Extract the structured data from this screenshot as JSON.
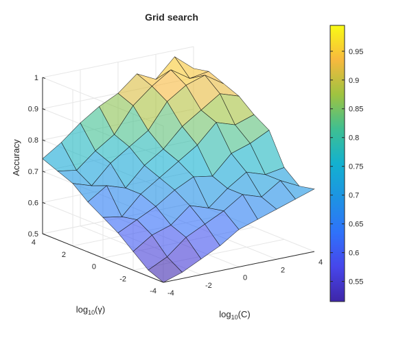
{
  "chart_data": {
    "type": "surface3d",
    "title": "Grid search",
    "xlabel": "log10(C)",
    "ylabel": "log10(γ)",
    "zlabel": "Accuracy",
    "xlim": [
      -4,
      4
    ],
    "ylim": [
      -4,
      4
    ],
    "zlim": [
      0.5,
      1.0
    ],
    "xticks": [
      -4,
      -2,
      0,
      2,
      4
    ],
    "yticks": [
      -4,
      -2,
      0,
      2,
      4
    ],
    "zticks": [
      0.5,
      0.6,
      0.7,
      0.8,
      0.9,
      1
    ],
    "xticklabels": [
      "-4",
      "-2",
      "0",
      "2",
      "4"
    ],
    "yticklabels": [
      "-4",
      "-2",
      "0",
      "2",
      "4"
    ],
    "zticklabels": [
      "0.5",
      "0.6",
      "0.7",
      "0.8",
      "0.9",
      "1"
    ],
    "grid": true,
    "colormap": "parula",
    "face_alpha": 0.6,
    "x": [
      -4,
      -3,
      -2,
      -1,
      0,
      1,
      2,
      3,
      4
    ],
    "y": [
      -4,
      -3,
      -2,
      -1,
      0,
      1,
      2,
      3,
      4
    ],
    "z": [
      [
        0.5,
        0.52,
        0.55,
        0.58,
        0.62,
        0.64,
        0.66,
        0.68,
        0.7
      ],
      [
        0.52,
        0.55,
        0.6,
        0.63,
        0.66,
        0.7,
        0.68,
        0.72,
        0.69
      ],
      [
        0.56,
        0.6,
        0.62,
        0.67,
        0.65,
        0.7,
        0.74,
        0.72,
        0.73
      ],
      [
        0.6,
        0.63,
        0.66,
        0.7,
        0.73,
        0.72,
        0.78,
        0.8,
        0.83
      ],
      [
        0.63,
        0.62,
        0.68,
        0.72,
        0.76,
        0.8,
        0.86,
        0.84,
        0.86
      ],
      [
        0.66,
        0.7,
        0.68,
        0.74,
        0.78,
        0.84,
        0.88,
        0.92,
        0.9
      ],
      [
        0.7,
        0.68,
        0.74,
        0.78,
        0.82,
        0.9,
        0.94,
        0.96,
        0.92
      ],
      [
        0.72,
        0.71,
        0.76,
        0.8,
        0.88,
        0.93,
        0.97,
        0.93,
        0.94
      ],
      [
        0.74,
        0.78,
        0.83,
        0.87,
        0.9,
        0.95,
        0.92,
        0.98,
        0.93
      ]
    ],
    "colorbar": {
      "range": [
        0.515,
        0.995
      ],
      "ticks": [
        0.55,
        0.6,
        0.65,
        0.7,
        0.75,
        0.8,
        0.85,
        0.9,
        0.95
      ],
      "ticklabels": [
        "0.55",
        "0.6",
        "0.65",
        "0.7",
        "0.75",
        "0.8",
        "0.85",
        "0.9",
        "0.95"
      ]
    }
  }
}
